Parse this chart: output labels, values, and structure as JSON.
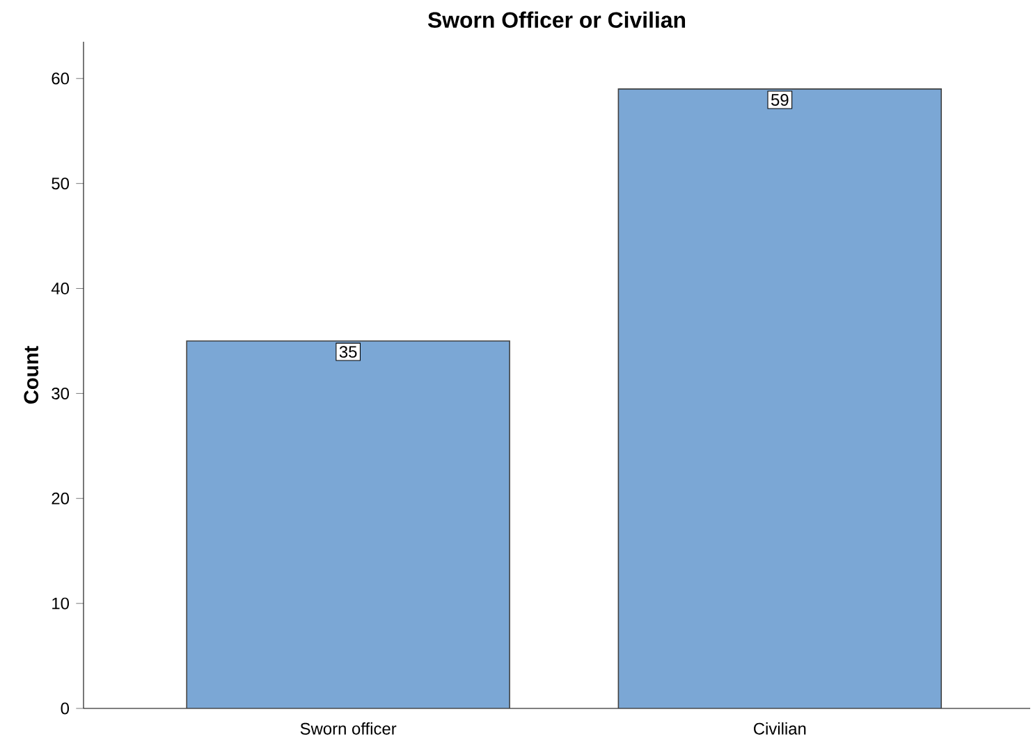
{
  "chart_data": {
    "type": "bar",
    "title": "Sworn Officer or Civilian",
    "ylabel": "Count",
    "categories": [
      "Sworn officer",
      "Civilian"
    ],
    "values": [
      35,
      59
    ],
    "color": "#7ba7d5",
    "data_labels": true,
    "ylim": [
      0,
      63.5
    ],
    "yticks": [
      0,
      10,
      20,
      30,
      40,
      50,
      60
    ]
  }
}
